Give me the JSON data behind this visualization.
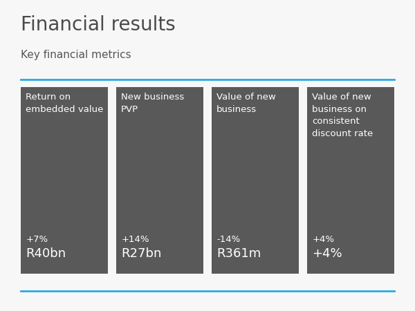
{
  "title": "Financial results",
  "subtitle": "Key financial metrics",
  "bg_color": "#f7f7f7",
  "title_color": "#4a4a4a",
  "subtitle_color": "#555555",
  "line_color": "#29aae1",
  "card_bg_color": "#595959",
  "card_text_color": "#ffffff",
  "cards": [
    {
      "label": "Return on\nembedded value",
      "pct": "+7%",
      "value": "R40bn"
    },
    {
      "label": "New business\nPVP",
      "pct": "+14%",
      "value": "R27bn"
    },
    {
      "label": "Value of new\nbusiness",
      "pct": "-14%",
      "value": "R361m"
    },
    {
      "label": "Value of new\nbusiness on\nconsistent\ndiscount rate",
      "pct": "+4%",
      "value": ""
    }
  ],
  "title_fontsize": 20,
  "subtitle_fontsize": 11,
  "label_fontsize": 9.5,
  "pct_fontsize": 9.5,
  "value_fontsize": 13
}
